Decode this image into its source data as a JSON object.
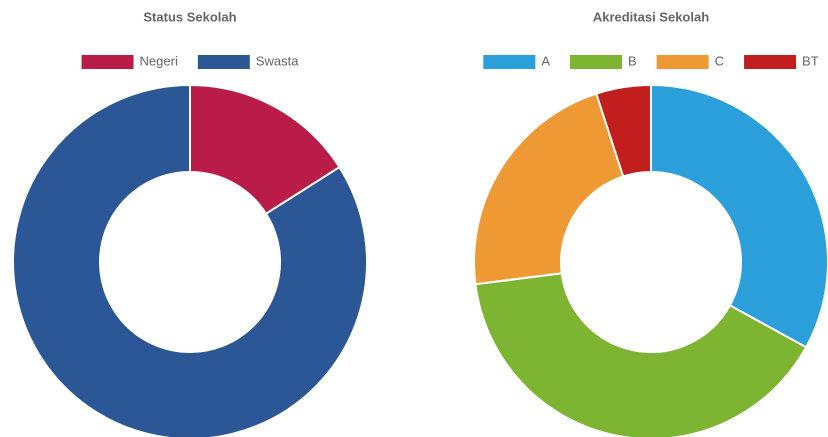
{
  "chart_data": [
    {
      "type": "doughnut",
      "title": "Status Sekolah",
      "categories": [
        "Negeri",
        "Swasta"
      ],
      "values": [
        16,
        84
      ],
      "colors": [
        "#b91c47",
        "#2b5796"
      ],
      "legend": "top"
    },
    {
      "type": "doughnut",
      "title": "Akreditasi Sekolah",
      "categories": [
        "A",
        "B",
        "C",
        "BT"
      ],
      "values": [
        33,
        40,
        22,
        5
      ],
      "colors": [
        "#2b9fd9",
        "#7db532",
        "#ee9933",
        "#c21e1e"
      ],
      "legend": "top"
    }
  ]
}
